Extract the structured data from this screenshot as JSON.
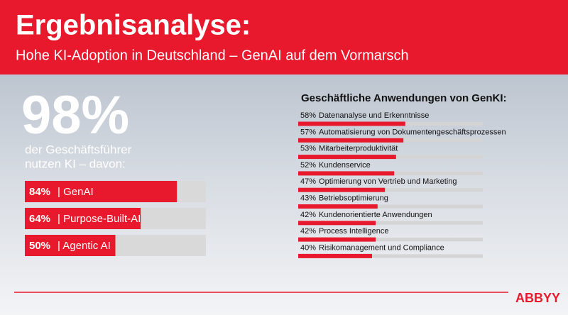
{
  "header": {
    "title": "Ergebnisanalyse:",
    "subtitle": "Hohe KI-Adoption in Deutschland – GenAI auf dem Vormarsch"
  },
  "stat": {
    "value": "98%",
    "caption": [
      "der Geschäftsführer",
      "nutzen KI – davon:"
    ]
  },
  "brand": "ABBYY",
  "chart_data": [
    {
      "type": "bar",
      "orientation": "horizontal",
      "categories": [
        "| GenAI",
        "| Purpose-Built-AI",
        "| Agentic AI"
      ],
      "values": [
        84,
        64,
        50
      ],
      "value_labels": [
        "84%",
        "64%",
        "50%"
      ],
      "xlim": [
        0,
        100
      ],
      "color": "#e8192c",
      "track_color": "#d9d9d9"
    },
    {
      "type": "bar",
      "orientation": "horizontal",
      "title": "Geschäftliche Anwendungen von GenKI:",
      "categories": [
        "Datenanalyse und Erkenntnisse",
        "Automatisierung von Dokumentengeschäftsprozessen",
        "Mitarbeiterproduktivität",
        "Kundenservice",
        "Optimierung von Vertrieb und Marketing",
        "Betriebsoptimierung",
        "Kundenorientierte Anwendungen",
        "Process Intelligence",
        "Risikomanagement und Compliance"
      ],
      "values": [
        58,
        57,
        53,
        52,
        47,
        43,
        42,
        42,
        40
      ],
      "value_labels": [
        "58%",
        "57%",
        "53%",
        "52%",
        "47%",
        "43%",
        "42%",
        "42%",
        "40%"
      ],
      "xlim": [
        0,
        100
      ],
      "color": "#e8192c",
      "track_color": "#d4d4d4"
    }
  ]
}
